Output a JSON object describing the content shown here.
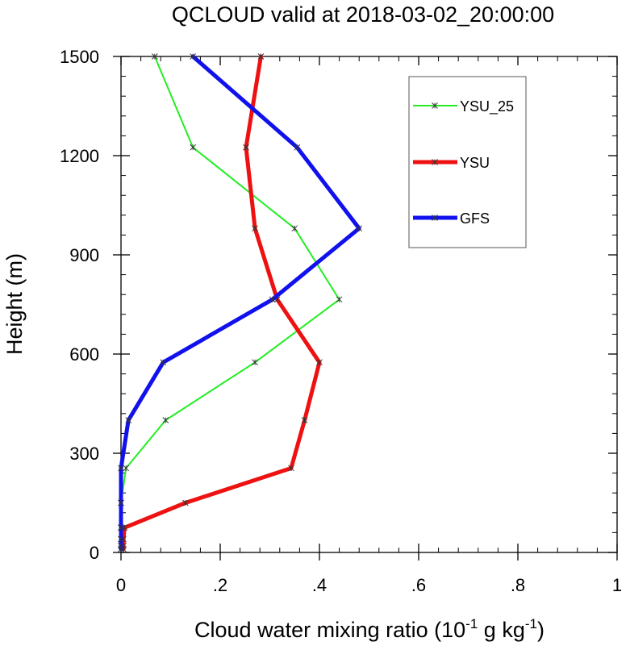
{
  "chart_data": {
    "type": "line",
    "title": "QCLOUD valid at 2018-03-02_20:00:00",
    "xlabel": {
      "main": "Cloud water mixing ratio (10",
      "sup1": "-1",
      "mid": " g kg",
      "sup2": "-1",
      "end": ")"
    },
    "ylabel": "Height (m)",
    "xlim": [
      0,
      1
    ],
    "ylim": [
      0,
      1500
    ],
    "x_ticks": [
      {
        "value": 0,
        "label": "0"
      },
      {
        "value": 0.2,
        "label": ".2"
      },
      {
        "value": 0.4,
        "label": ".4"
      },
      {
        "value": 0.6,
        "label": ".6"
      },
      {
        "value": 0.8,
        "label": ".8"
      },
      {
        "value": 1,
        "label": "1"
      }
    ],
    "y_ticks": [
      {
        "value": 0,
        "label": "0"
      },
      {
        "value": 300,
        "label": "300"
      },
      {
        "value": 600,
        "label": "600"
      },
      {
        "value": 900,
        "label": "900"
      },
      {
        "value": 1200,
        "label": "1200"
      },
      {
        "value": 1500,
        "label": "1500"
      }
    ],
    "x_minor_step": 0.04,
    "y_minor_step": 60,
    "grid": false,
    "legend_position": "top-right",
    "series": [
      {
        "name": "YSU_25",
        "color": "#22ee22",
        "width": 2,
        "x": [
          0.0,
          0.0,
          0.0,
          0.0,
          0.0,
          0.01,
          0.09,
          0.27,
          0.44,
          0.35,
          0.145,
          0.068
        ],
        "y": [
          10,
          20,
          40,
          75,
          150,
          255,
          400,
          575,
          765,
          980,
          1225,
          1500
        ]
      },
      {
        "name": "YSU",
        "color": "#ee1111",
        "width": 5,
        "x": [
          0.005,
          0.005,
          0.005,
          0.007,
          0.13,
          0.343,
          0.37,
          0.4,
          0.315,
          0.27,
          0.252,
          0.282
        ],
        "y": [
          10,
          20,
          40,
          75,
          150,
          255,
          400,
          575,
          765,
          980,
          1225,
          1500
        ]
      },
      {
        "name": "GFS",
        "color": "#1111ee",
        "width": 5,
        "x": [
          0.0,
          0.0,
          0.0,
          0.0,
          0.0,
          0.0,
          0.015,
          0.085,
          0.305,
          0.48,
          0.355,
          0.145
        ],
        "y": [
          10,
          20,
          40,
          75,
          150,
          255,
          400,
          575,
          765,
          980,
          1225,
          1500
        ]
      }
    ]
  }
}
